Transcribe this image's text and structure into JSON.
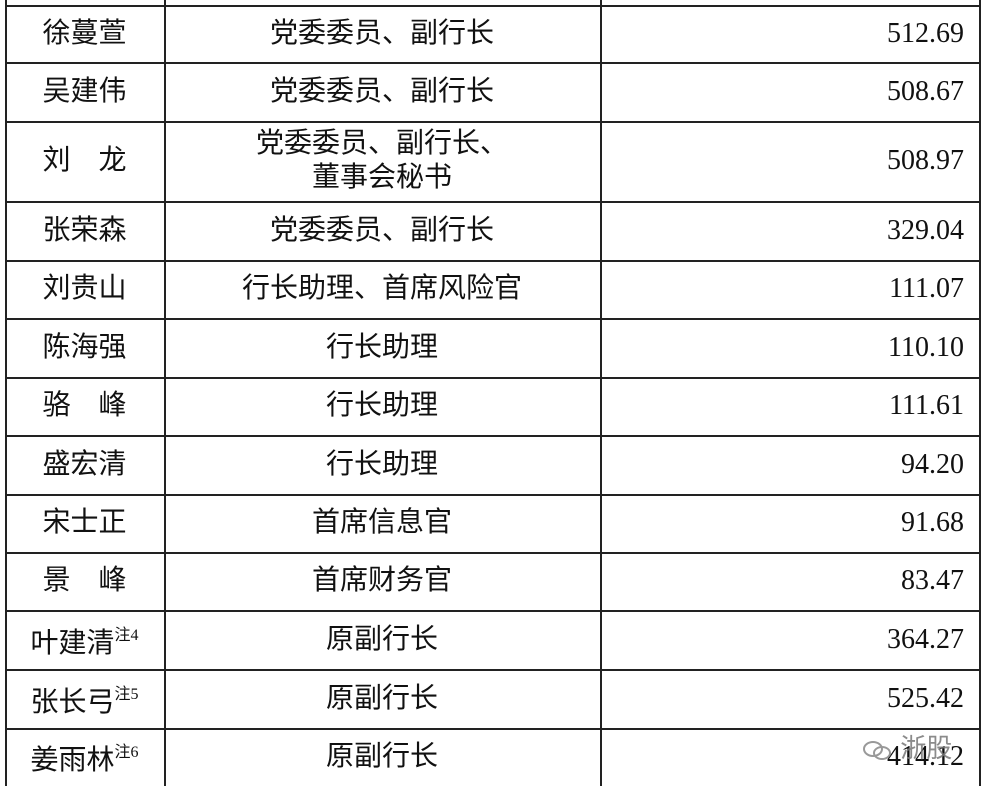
{
  "table": {
    "rows": [
      {
        "name": "徐蔓萱",
        "role": [
          "党委委员、副行长"
        ],
        "amount": "512.69"
      },
      {
        "name": "吴建伟",
        "role": [
          "党委委员、副行长"
        ],
        "amount": "508.67"
      },
      {
        "name": "刘　龙",
        "role": [
          "党委委员、副行长、",
          "董事会秘书"
        ],
        "amount": "508.97"
      },
      {
        "name": "张荣森",
        "role": [
          "党委委员、副行长"
        ],
        "amount": "329.04"
      },
      {
        "name": "刘贵山",
        "role": [
          "行长助理、首席风险官"
        ],
        "amount": "111.07"
      },
      {
        "name": "陈海强",
        "role": [
          "行长助理"
        ],
        "amount": "110.10"
      },
      {
        "name": "骆　峰",
        "role": [
          "行长助理"
        ],
        "amount": "111.61"
      },
      {
        "name": "盛宏清",
        "role": [
          "行长助理"
        ],
        "amount": "94.20"
      },
      {
        "name": "宋士正",
        "role": [
          "首席信息官"
        ],
        "amount": "91.68"
      },
      {
        "name": "景　峰",
        "role": [
          "首席财务官"
        ],
        "amount": "83.47"
      },
      {
        "name": "叶建清",
        "note": "注4",
        "role": [
          "原副行长"
        ],
        "amount": "364.27"
      },
      {
        "name": "张长弓",
        "note": "注5",
        "role": [
          "原副行长"
        ],
        "amount": "525.42"
      },
      {
        "name": "姜雨林",
        "note": "注6",
        "role": [
          "原副行长"
        ],
        "amount": "414.12"
      }
    ]
  },
  "watermark": "浙股"
}
